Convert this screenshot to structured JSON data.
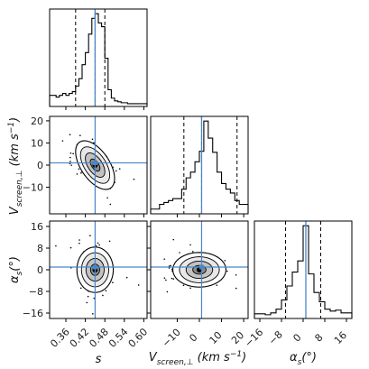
{
  "chart_data": {
    "type": "corner",
    "parameters": [
      {
        "id": "s",
        "label": "s",
        "truth": 0.45,
        "range": [
          0.31,
          0.61
        ],
        "ticks": [
          0.36,
          0.42,
          0.48,
          0.54,
          0.6
        ],
        "tick_labels": [
          "0.36",
          "0.42",
          "0.48",
          "0.54",
          "0.60"
        ],
        "quantiles": [
          0.39,
          0.45,
          0.48
        ],
        "hist_edges": [
          0.31,
          0.32,
          0.33,
          0.34,
          0.35,
          0.36,
          0.37,
          0.38,
          0.39,
          0.4,
          0.41,
          0.42,
          0.43,
          0.44,
          0.45,
          0.46,
          0.47,
          0.48,
          0.49,
          0.5,
          0.51,
          0.52,
          0.53,
          0.54,
          0.55,
          0.56,
          0.57,
          0.58,
          0.59,
          0.6,
          0.61
        ],
        "hist_counts": [
          12,
          12,
          10,
          12,
          14,
          12,
          14,
          16,
          22,
          30,
          45,
          58,
          78,
          95,
          100,
          90,
          86,
          52,
          18,
          9,
          6,
          5,
          4,
          4,
          3,
          3,
          3,
          3,
          3,
          3
        ]
      },
      {
        "id": "vscreen",
        "label": "V_screen,⊥ (km s⁻¹)",
        "truth": 1,
        "range": [
          -22,
          22
        ],
        "ticks": [
          -10,
          0,
          10,
          20
        ],
        "tick_labels": [
          "−10",
          "0",
          "10",
          "20"
        ],
        "quantiles": [
          -7,
          1,
          17
        ],
        "hist_edges": [
          -22,
          -20,
          -18,
          -16,
          -14,
          -12,
          -10,
          -8,
          -6,
          -4,
          -2,
          0,
          2,
          4,
          6,
          8,
          10,
          12,
          14,
          16,
          18,
          20,
          22
        ],
        "hist_counts": [
          5,
          5,
          10,
          12,
          14,
          16,
          16,
          26,
          38,
          44,
          55,
          66,
          98,
          80,
          65,
          44,
          32,
          26,
          22,
          14,
          10,
          10
        ]
      },
      {
        "id": "alpha",
        "label": "α_s (°)",
        "truth": 1,
        "range": [
          -18,
          18
        ],
        "ticks": [
          -16,
          -8,
          0,
          8,
          16
        ],
        "tick_labels": [
          "−16",
          "−8",
          "0",
          "8",
          "16"
        ],
        "quantiles": [
          -6.5,
          1,
          6.5
        ],
        "hist_edges": [
          -18,
          -16,
          -14,
          -12,
          -10,
          -8,
          -6,
          -4,
          -2,
          0,
          2,
          4,
          6,
          8,
          10,
          12,
          14,
          16,
          18
        ],
        "hist_counts": [
          5,
          5,
          4,
          6,
          10,
          20,
          35,
          50,
          62,
          100,
          48,
          28,
          18,
          10,
          8,
          9,
          6,
          6
        ]
      }
    ],
    "axis_labels": {
      "x": [
        "s",
        "V_screen,⊥ (km s⁻¹)",
        "α_s (°)"
      ],
      "y": [
        "V_screen,⊥ (km s⁻¹)",
        "α_s (°)"
      ]
    },
    "pairs": [
      {
        "x": "s",
        "y": "vscreen",
        "mean": [
          0.45,
          0
        ],
        "sd": [
          0.03,
          5.5
        ],
        "rho": -0.55
      },
      {
        "x": "s",
        "y": "alpha",
        "mean": [
          0.45,
          0
        ],
        "sd": [
          0.028,
          4.2
        ],
        "rho": 0.0
      },
      {
        "x": "vscreen",
        "y": "alpha",
        "mean": [
          0,
          0
        ],
        "sd": [
          6.0,
          3.2
        ],
        "rho": 0.0
      }
    ],
    "truth_color": "#4a86c8",
    "grid": false
  }
}
